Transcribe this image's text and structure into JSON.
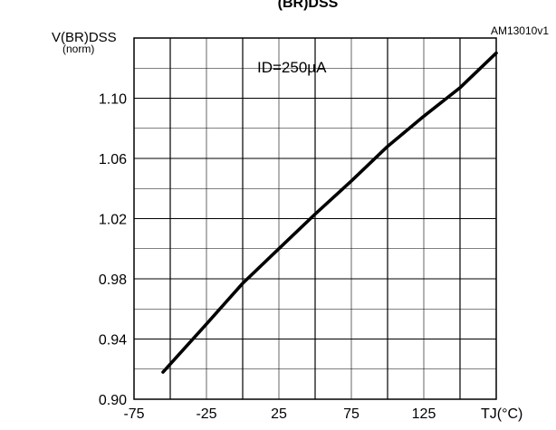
{
  "header": {
    "fig_caption_fragment": "(BR)DSS"
  },
  "chart_data": {
    "type": "line",
    "figure_id": "AM13010v1",
    "title": "",
    "ylabel_main": "V(BR)DSS",
    "ylabel_sub": "(norm)",
    "xlabel": "TJ(°C)",
    "annotation": "ID=250µA",
    "xlim": [
      -75,
      175
    ],
    "ylim": [
      0.9,
      1.14
    ],
    "x_ticks": [
      -75,
      -25,
      25,
      75,
      125
    ],
    "x_tick_labels": [
      "-75",
      "-25",
      "25",
      "75",
      "125"
    ],
    "y_ticks": [
      0.9,
      0.94,
      0.98,
      1.02,
      1.06,
      1.1
    ],
    "y_tick_labels": [
      "0.90",
      "0.94",
      "0.98",
      "1.02",
      "1.06",
      "1.10"
    ],
    "grid": true,
    "series": [
      {
        "x": [
          -55,
          -25,
          0,
          25,
          50,
          75,
          100,
          125,
          150,
          175
        ],
        "y": [
          0.918,
          0.95,
          0.977,
          1.0,
          1.023,
          1.045,
          1.068,
          1.088,
          1.107,
          1.13
        ]
      }
    ]
  }
}
